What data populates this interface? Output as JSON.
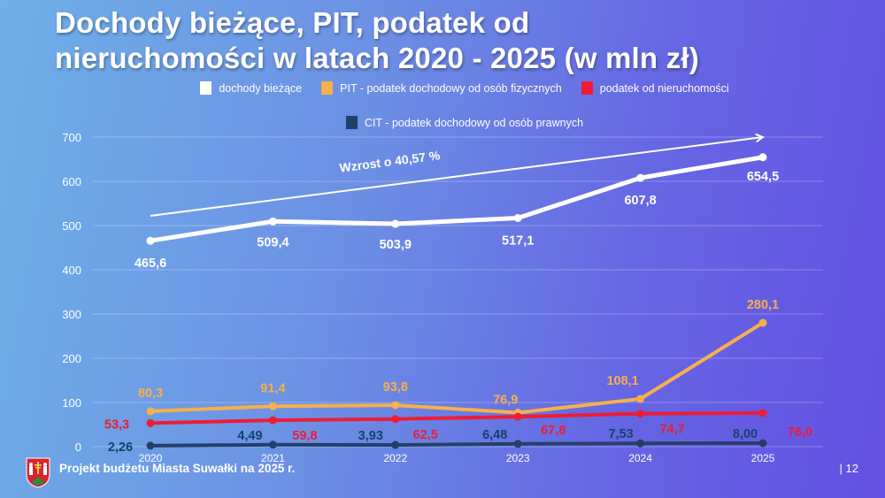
{
  "page": {
    "title_line1": "Dochody bieżące, PIT, podatek od",
    "title_line2": "nieruchomości w latach 2020 - 2025 (w mln zł)",
    "footer_prefix": "Projekt budżetu Miasta Suwałki na ",
    "footer_year": "2025 r.",
    "page_number": "| 12",
    "crest_icon": "city-coat-of-arms-icon"
  },
  "chart_data": {
    "type": "line",
    "title": "Dochody bieżące, PIT, podatek od nieruchomości w latach 2020 - 2025 (w mln zł)",
    "xlabel": "",
    "ylabel": "",
    "categories": [
      "2020",
      "2021",
      "2022",
      "2023",
      "2024",
      "2025"
    ],
    "ylim": [
      0,
      700
    ],
    "yticks": [
      0,
      100,
      200,
      300,
      400,
      500,
      600,
      700
    ],
    "ytick_labels": [
      "0",
      "100",
      "200",
      "300",
      "400",
      "500",
      "600",
      "700"
    ],
    "grid": true,
    "legend_position": "top",
    "series": [
      {
        "name": "dochody bieżące",
        "color": "#ffffff",
        "values": [
          465.6,
          509.4,
          503.9,
          517.1,
          607.8,
          654.5
        ],
        "labels": [
          "465,6",
          "509,4",
          "503,9",
          "517,1",
          "607,8",
          "654,5"
        ]
      },
      {
        "name": "PIT - podatek dochodowy od osób fizycznych",
        "color": "#f6b04c",
        "values": [
          80.3,
          91.4,
          93.8,
          76.9,
          108.1,
          280.1
        ],
        "labels": [
          "80,3",
          "91,4",
          "93,8",
          "76,9",
          "108,1",
          "280,1"
        ]
      },
      {
        "name": "podatek od nieruchomości",
        "color": "#ee1c35",
        "values": [
          53.3,
          59.8,
          62.5,
          67.8,
          74.7,
          76.0
        ],
        "labels": [
          "53,3",
          "59,8",
          "62,5",
          "67,8",
          "74,7",
          "76,0"
        ]
      },
      {
        "name": "CIT - podatek dochodowy od osób prawnych",
        "color": "#24406a",
        "label_color": "#10456b",
        "values": [
          2.26,
          4.49,
          3.93,
          6.48,
          7.53,
          8.0
        ],
        "labels": [
          "2,26",
          "4,49",
          "3,93",
          "6,48",
          "7,53",
          "8,00"
        ]
      }
    ],
    "annotations": [
      {
        "text": "Wzrost o 40,57 %",
        "type": "trend-arrow",
        "from": {
          "x": "2020",
          "y": 522
        },
        "to": {
          "x": "2025",
          "y": 700
        }
      }
    ]
  }
}
